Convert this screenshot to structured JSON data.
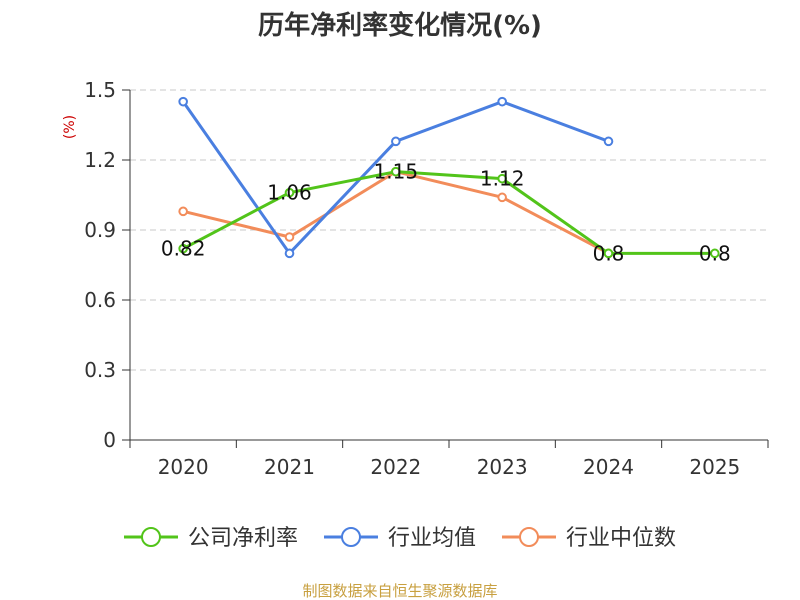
{
  "chart_data": {
    "type": "line",
    "title": "历年净利率变化情况(%)",
    "ylabel": "(%)",
    "categories": [
      "2020",
      "2021",
      "2022",
      "2023",
      "2024",
      "2025"
    ],
    "ylim": [
      0,
      1.5
    ],
    "yticks": [
      "0",
      "0.3",
      "0.6",
      "0.9",
      "1.2",
      "1.5"
    ],
    "grid": true,
    "legend_position": "bottom",
    "series": [
      {
        "name": "公司净利率",
        "color": "#52c41a",
        "values": [
          0.82,
          1.06,
          1.15,
          1.12,
          0.8,
          0.8
        ],
        "labels": [
          "0.82",
          "1.06",
          "1.15",
          "1.12",
          "0.8",
          "0.8"
        ]
      },
      {
        "name": "行业均值",
        "color": "#4a7fe0",
        "values": [
          1.45,
          0.8,
          1.28,
          1.45,
          1.28,
          null
        ]
      },
      {
        "name": "行业中位数",
        "color": "#f28c5a",
        "values": [
          0.98,
          0.87,
          1.15,
          1.04,
          0.8,
          null
        ]
      }
    ],
    "source": "制图数据来自恒生聚源数据库"
  }
}
